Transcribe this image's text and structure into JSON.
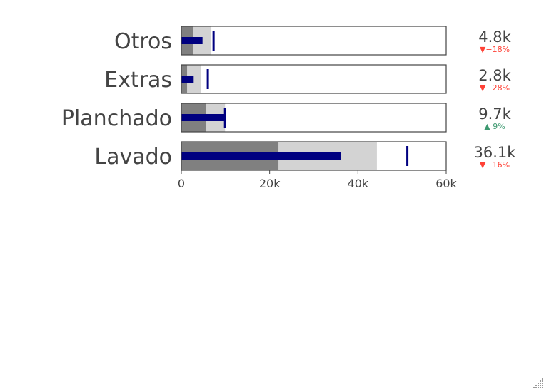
{
  "chart_data": {
    "type": "bullet",
    "axis": {
      "range": [
        0,
        60000
      ],
      "ticks": [
        0,
        20000,
        40000,
        60000
      ],
      "tick_labels": [
        "0",
        "20k",
        "40k",
        "60k"
      ]
    },
    "colors": {
      "bar": "#000080",
      "threshold": "#000080",
      "step_dark": "#808080",
      "step_light": "#d3d3d3",
      "border": "#444444",
      "increasing": "#3d9970",
      "decreasing": "#ff4136",
      "text": "#444444"
    },
    "rows": [
      {
        "label": "Otros",
        "value": 4800,
        "value_text": "4.8k",
        "steps": [
          2700,
          6800
        ],
        "threshold": 7300,
        "delta_text": "▼−18%",
        "delta_dir": "down"
      },
      {
        "label": "Extras",
        "value": 2800,
        "value_text": "2.8k",
        "steps": [
          1300,
          4500
        ],
        "threshold": 6000,
        "delta_text": "▼−28%",
        "delta_dir": "down"
      },
      {
        "label": "Planchado",
        "value": 9700,
        "value_text": "9.7k",
        "steps": [
          5500,
          9900
        ],
        "threshold": 9900,
        "delta_text": "▲ 9%",
        "delta_dir": "up"
      },
      {
        "label": "Lavado",
        "value": 36100,
        "value_text": "36.1k",
        "steps": [
          22000,
          44300
        ],
        "threshold": 51200,
        "delta_text": "▼−16%",
        "delta_dir": "down"
      }
    ]
  }
}
